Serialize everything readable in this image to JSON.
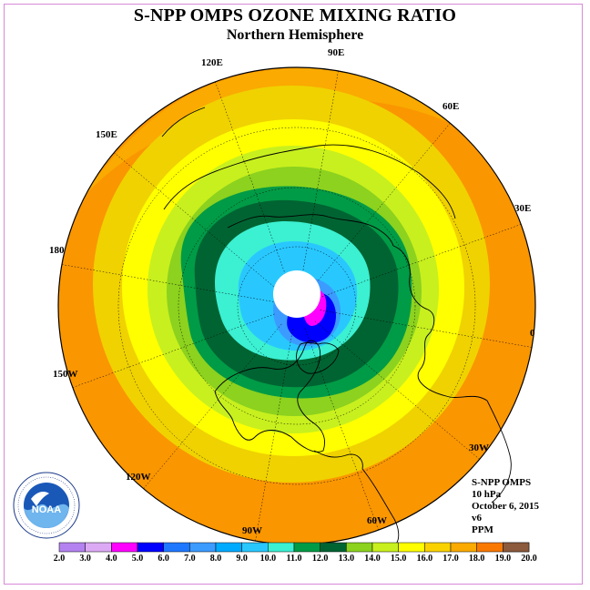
{
  "title": "S-NPP OMPS OZONE MIXING RATIO",
  "subtitle": "Northern Hemisphere",
  "longitude_labels": [
    "90E",
    "60E",
    "30E",
    "0",
    "30W",
    "60W",
    "90W",
    "120W",
    "150W",
    "180",
    "150E",
    "120E"
  ],
  "info": {
    "instrument": "S-NPP OMPS",
    "level": "10 hPa",
    "date": "October 6, 2015",
    "version": "v6",
    "units": "PPM"
  },
  "logo": {
    "text": "NOAA",
    "icon": "noaa-logo"
  },
  "colorbar": {
    "ticks": [
      "2.0",
      "3.0",
      "4.0",
      "5.0",
      "6.0",
      "7.0",
      "8.0",
      "9.0",
      "10.0",
      "11.0",
      "12.0",
      "13.0",
      "14.0",
      "15.0",
      "16.0",
      "17.0",
      "18.0",
      "19.0",
      "20.0"
    ],
    "colors": [
      "#b482f0",
      "#dcaaf5",
      "#ff00ff",
      "#0000ff",
      "#1e78ff",
      "#3c9bff",
      "#00aaff",
      "#28c8ff",
      "#3cf0d2",
      "#009b46",
      "#006432",
      "#8cd21e",
      "#c8f01e",
      "#ffff00",
      "#fad200",
      "#faaa00",
      "#fa7800",
      "#ff0000",
      "#8c5a3c"
    ]
  },
  "contour_bands": [
    "#fa9600",
    "#faaa00",
    "#f0d200",
    "#ffff00",
    "#c8f01e",
    "#8cd21e",
    "#009b46",
    "#006432",
    "#3cf0d2",
    "#28c8ff",
    "#3c9bff",
    "#ff00ff",
    "#0000ff"
  ]
}
